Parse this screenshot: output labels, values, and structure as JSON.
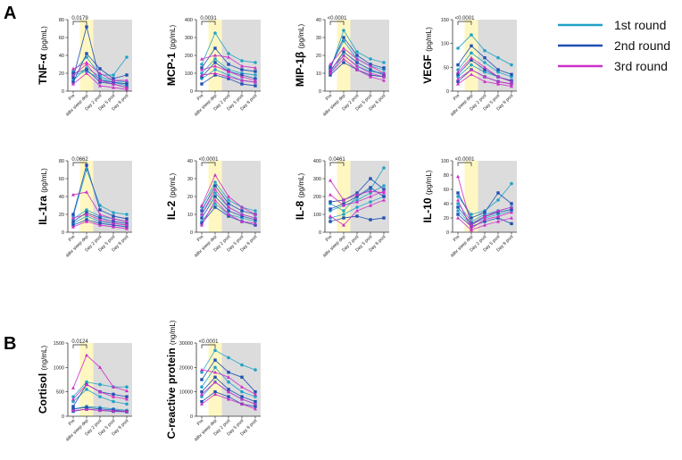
{
  "figure": {
    "panel_labels": [
      "A",
      "B"
    ]
  },
  "legend": [
    {
      "label": "1st round",
      "color": "#21a3c8"
    },
    {
      "label": "2nd round",
      "color": "#1f50b4"
    },
    {
      "label": "3rd round",
      "color": "#cc2fc8"
    }
  ],
  "x_categories": [
    "Pre",
    "48hr sleep dep",
    "Day 2 post",
    "Day 5 post",
    "Day 8 post"
  ],
  "chart_data": [
    {
      "type": "line",
      "panel": "A",
      "title_main": "TNF-α",
      "title_unit": "(pg/mL)",
      "ylim": [
        0,
        80
      ],
      "yticks": [
        0,
        20,
        40,
        60,
        80
      ],
      "pvalue": "0.0179",
      "series": [
        {
          "round": 0,
          "values": [
            22,
            38,
            18,
            18,
            38
          ]
        },
        {
          "round": 0,
          "values": [
            12,
            26,
            16,
            12,
            10
          ]
        },
        {
          "round": 0,
          "values": [
            18,
            22,
            14,
            10,
            6
          ]
        },
        {
          "round": 1,
          "values": [
            15,
            72,
            12,
            10,
            8
          ]
        },
        {
          "round": 1,
          "values": [
            10,
            42,
            25,
            14,
            18
          ]
        },
        {
          "round": 1,
          "values": [
            20,
            24,
            10,
            8,
            4
          ]
        },
        {
          "round": 2,
          "values": [
            25,
            32,
            20,
            12,
            12
          ]
        },
        {
          "round": 2,
          "values": [
            18,
            30,
            12,
            8,
            4
          ]
        },
        {
          "round": 2,
          "values": [
            8,
            20,
            6,
            4,
            2
          ]
        }
      ]
    },
    {
      "type": "line",
      "panel": "A",
      "title_main": "MCP-1",
      "title_unit": "(pg/mL)",
      "ylim": [
        0,
        400
      ],
      "yticks": [
        0,
        100,
        200,
        300,
        400
      ],
      "pvalue": "0.0031",
      "series": [
        {
          "round": 0,
          "values": [
            150,
            325,
            210,
            170,
            160
          ]
        },
        {
          "round": 0,
          "values": [
            100,
            180,
            120,
            100,
            90
          ]
        },
        {
          "round": 0,
          "values": [
            70,
            120,
            90,
            60,
            50
          ]
        },
        {
          "round": 1,
          "values": [
            130,
            240,
            150,
            120,
            110
          ]
        },
        {
          "round": 1,
          "values": [
            80,
            160,
            110,
            90,
            70
          ]
        },
        {
          "round": 1,
          "values": [
            40,
            90,
            70,
            40,
            30
          ]
        },
        {
          "round": 2,
          "values": [
            180,
            200,
            190,
            140,
            130
          ]
        },
        {
          "round": 2,
          "values": [
            120,
            140,
            110,
            80,
            60
          ]
        },
        {
          "round": 2,
          "values": [
            90,
            100,
            80,
            60,
            50
          ]
        }
      ]
    },
    {
      "type": "line",
      "panel": "A",
      "title_main": "MIP-1β",
      "title_unit": "(pg/mL)",
      "ylim": [
        0,
        40
      ],
      "yticks": [
        0,
        10,
        20,
        30,
        40
      ],
      "pvalue": "<0.0001",
      "series": [
        {
          "round": 0,
          "values": [
            12,
            34,
            22,
            18,
            16
          ]
        },
        {
          "round": 0,
          "values": [
            14,
            28,
            18,
            14,
            12
          ]
        },
        {
          "round": 0,
          "values": [
            10,
            20,
            14,
            11,
            10
          ]
        },
        {
          "round": 1,
          "values": [
            13,
            30,
            20,
            15,
            13
          ]
        },
        {
          "round": 1,
          "values": [
            11,
            22,
            16,
            12,
            9
          ]
        },
        {
          "round": 1,
          "values": [
            9,
            16,
            12,
            9,
            8
          ]
        },
        {
          "round": 2,
          "values": [
            15,
            24,
            18,
            14,
            10
          ]
        },
        {
          "round": 2,
          "values": [
            12,
            20,
            14,
            10,
            8
          ]
        },
        {
          "round": 2,
          "values": [
            10,
            18,
            12,
            8,
            6
          ]
        }
      ]
    },
    {
      "type": "line",
      "panel": "A",
      "title_main": "VEGF",
      "title_unit": "(pg/mL)",
      "ylim": [
        0,
        150
      ],
      "yticks": [
        0,
        50,
        100,
        150
      ],
      "pvalue": "<0.0001",
      "series": [
        {
          "round": 0,
          "values": [
            90,
            118,
            85,
            70,
            55
          ]
        },
        {
          "round": 0,
          "values": [
            45,
            80,
            60,
            40,
            30
          ]
        },
        {
          "round": 0,
          "values": [
            30,
            55,
            40,
            30,
            20
          ]
        },
        {
          "round": 1,
          "values": [
            55,
            95,
            70,
            45,
            35
          ]
        },
        {
          "round": 1,
          "values": [
            35,
            65,
            45,
            30,
            22
          ]
        },
        {
          "round": 1,
          "values": [
            20,
            45,
            30,
            20,
            15
          ]
        },
        {
          "round": 2,
          "values": [
            40,
            70,
            50,
            30,
            20
          ]
        },
        {
          "round": 2,
          "values": [
            25,
            45,
            30,
            20,
            15
          ]
        },
        {
          "round": 2,
          "values": [
            15,
            35,
            20,
            15,
            10
          ]
        }
      ]
    },
    {
      "type": "line",
      "panel": "A",
      "title_main": "IL-1ra",
      "title_unit": "(pg/mL)",
      "ylim": [
        0,
        80
      ],
      "yticks": [
        0,
        20,
        40,
        60,
        80
      ],
      "pvalue": "0.0662",
      "series": [
        {
          "round": 0,
          "values": [
            18,
            70,
            30,
            22,
            20
          ]
        },
        {
          "round": 0,
          "values": [
            15,
            25,
            18,
            15,
            12
          ]
        },
        {
          "round": 0,
          "values": [
            10,
            18,
            12,
            10,
            8
          ]
        },
        {
          "round": 1,
          "values": [
            20,
            75,
            25,
            18,
            15
          ]
        },
        {
          "round": 1,
          "values": [
            12,
            22,
            16,
            12,
            10
          ]
        },
        {
          "round": 1,
          "values": [
            8,
            14,
            10,
            8,
            6
          ]
        },
        {
          "round": 2,
          "values": [
            42,
            45,
            20,
            15,
            12
          ]
        },
        {
          "round": 2,
          "values": [
            16,
            20,
            14,
            10,
            8
          ]
        },
        {
          "round": 2,
          "values": [
            6,
            12,
            8,
            6,
            4
          ]
        }
      ]
    },
    {
      "type": "line",
      "panel": "A",
      "title_main": "IL-2",
      "title_unit": "(pg/mL)",
      "ylim": [
        0,
        40
      ],
      "yticks": [
        0,
        10,
        20,
        30,
        40
      ],
      "pvalue": "<0.0001",
      "series": [
        {
          "round": 0,
          "values": [
            14,
            28,
            18,
            14,
            12
          ]
        },
        {
          "round": 0,
          "values": [
            10,
            22,
            14,
            10,
            8
          ]
        },
        {
          "round": 0,
          "values": [
            6,
            16,
            10,
            8,
            6
          ]
        },
        {
          "round": 1,
          "values": [
            12,
            26,
            16,
            12,
            10
          ]
        },
        {
          "round": 1,
          "values": [
            8,
            20,
            12,
            9,
            7
          ]
        },
        {
          "round": 1,
          "values": [
            5,
            14,
            9,
            6,
            4
          ]
        },
        {
          "round": 2,
          "values": [
            15,
            32,
            20,
            14,
            10
          ]
        },
        {
          "round": 2,
          "values": [
            10,
            24,
            14,
            10,
            8
          ]
        },
        {
          "round": 2,
          "values": [
            4,
            18,
            10,
            6,
            5
          ]
        }
      ]
    },
    {
      "type": "line",
      "panel": "A",
      "title_main": "IL-8",
      "title_unit": "(pg/mL)",
      "ylim": [
        0,
        400
      ],
      "yticks": [
        0,
        100,
        200,
        300,
        400
      ],
      "pvalue": "0.0461",
      "series": [
        {
          "round": 0,
          "values": [
            160,
            120,
            200,
            240,
            360
          ]
        },
        {
          "round": 0,
          "values": [
            120,
            150,
            180,
            220,
            260
          ]
        },
        {
          "round": 0,
          "values": [
            80,
            100,
            140,
            170,
            200
          ]
        },
        {
          "round": 1,
          "values": [
            170,
            180,
            220,
            300,
            240
          ]
        },
        {
          "round": 1,
          "values": [
            130,
            160,
            200,
            250,
            200
          ]
        },
        {
          "round": 1,
          "values": [
            60,
            80,
            90,
            70,
            80
          ]
        },
        {
          "round": 2,
          "values": [
            290,
            180,
            210,
            230,
            220
          ]
        },
        {
          "round": 2,
          "values": [
            210,
            150,
            170,
            200,
            230
          ]
        },
        {
          "round": 2,
          "values": [
            90,
            40,
            120,
            150,
            180
          ]
        }
      ]
    },
    {
      "type": "line",
      "panel": "A",
      "title_main": "IL-10",
      "title_unit": "(pg/mL)",
      "ylim": [
        0,
        100
      ],
      "yticks": [
        0,
        20,
        40,
        60,
        80,
        100
      ],
      "pvalue": "<0.0001",
      "series": [
        {
          "round": 0,
          "values": [
            50,
            25,
            30,
            45,
            68
          ]
        },
        {
          "round": 0,
          "values": [
            40,
            15,
            25,
            30,
            35
          ]
        },
        {
          "round": 0,
          "values": [
            30,
            10,
            20,
            25,
            30
          ]
        },
        {
          "round": 1,
          "values": [
            55,
            20,
            28,
            55,
            40
          ]
        },
        {
          "round": 1,
          "values": [
            35,
            12,
            22,
            28,
            32
          ]
        },
        {
          "round": 1,
          "values": [
            25,
            8,
            15,
            20,
            12
          ]
        },
        {
          "round": 2,
          "values": [
            78,
            10,
            22,
            30,
            35
          ]
        },
        {
          "round": 2,
          "values": [
            45,
            5,
            18,
            22,
            28
          ]
        },
        {
          "round": 2,
          "values": [
            20,
            3,
            10,
            15,
            20
          ]
        }
      ]
    },
    {
      "type": "line",
      "panel": "B",
      "title_main": "Cortisol",
      "title_unit": "(ng/mL)",
      "ylim": [
        0,
        1500
      ],
      "yticks": [
        0,
        500,
        1000,
        1500
      ],
      "pvalue": "0.0124",
      "series": [
        {
          "round": 0,
          "values": [
            400,
            700,
            650,
            600,
            600
          ]
        },
        {
          "round": 0,
          "values": [
            300,
            550,
            400,
            300,
            250
          ]
        },
        {
          "round": 0,
          "values": [
            150,
            200,
            180,
            150,
            120
          ]
        },
        {
          "round": 1,
          "values": [
            200,
            650,
            500,
            450,
            400
          ]
        },
        {
          "round": 1,
          "values": [
            150,
            180,
            150,
            130,
            100
          ]
        },
        {
          "round": 1,
          "values": [
            100,
            150,
            120,
            100,
            90
          ]
        },
        {
          "round": 2,
          "values": [
            580,
            1250,
            1000,
            600,
            520
          ]
        },
        {
          "round": 2,
          "values": [
            350,
            650,
            500,
            400,
            350
          ]
        },
        {
          "round": 2,
          "values": [
            120,
            140,
            120,
            110,
            100
          ]
        }
      ]
    },
    {
      "type": "line",
      "panel": "B",
      "title_main": "C-reactive protein",
      "title_unit": "(ng/mL)",
      "ylim": [
        0,
        30000
      ],
      "yticks": [
        0,
        10000,
        20000,
        30000
      ],
      "pvalue": "<0.0001",
      "series": [
        {
          "round": 0,
          "values": [
            18000,
            27000,
            24000,
            21000,
            19000
          ]
        },
        {
          "round": 0,
          "values": [
            12000,
            20000,
            14000,
            10000,
            8000
          ]
        },
        {
          "round": 0,
          "values": [
            8000,
            14000,
            10000,
            7000,
            5000
          ]
        },
        {
          "round": 1,
          "values": [
            15000,
            23000,
            18000,
            16000,
            10000
          ]
        },
        {
          "round": 1,
          "values": [
            10000,
            16000,
            11000,
            8000,
            6000
          ]
        },
        {
          "round": 1,
          "values": [
            6000,
            10000,
            8000,
            5000,
            4000
          ]
        },
        {
          "round": 2,
          "values": [
            19000,
            18000,
            16000,
            12000,
            9000
          ]
        },
        {
          "round": 2,
          "values": [
            9000,
            14000,
            10000,
            7000,
            5000
          ]
        },
        {
          "round": 2,
          "values": [
            5000,
            9000,
            7000,
            5000,
            3000
          ]
        }
      ]
    }
  ]
}
